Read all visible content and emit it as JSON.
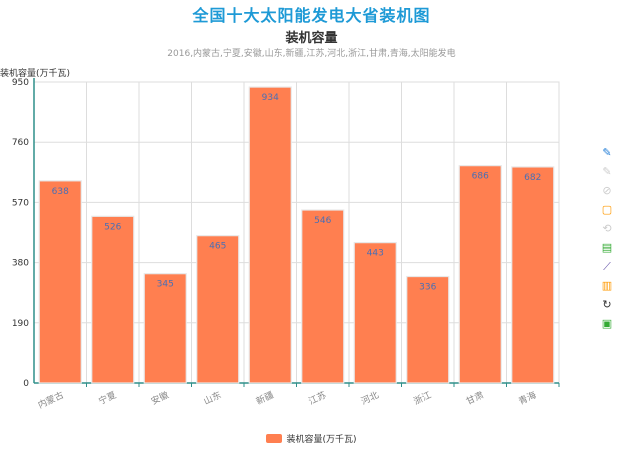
{
  "page": {
    "main_title": "全国十大太阳能发电大省装机图"
  },
  "chart_data": {
    "type": "bar",
    "title": "装机容量",
    "subtitle": "2016,内蒙古,宁夏,安徽,山东,新疆,江苏,河北,浙江,甘肃,青海,太阳能发电",
    "ylabel": "装机容量(万千瓦)",
    "xlabel": "",
    "categories": [
      "内蒙古",
      "宁夏",
      "安徽",
      "山东",
      "新疆",
      "江苏",
      "河北",
      "浙江",
      "甘肃",
      "青海"
    ],
    "series": [
      {
        "name": "装机容量(万千瓦)",
        "values": [
          638,
          526,
          345,
          465,
          934,
          546,
          443,
          336,
          686,
          682
        ]
      }
    ],
    "ylim": [
      0,
      950
    ],
    "yticks": [
      0,
      190,
      380,
      570,
      760,
      950
    ],
    "grid": true,
    "legend_position": "bottom-center",
    "colors": {
      "bar": "#ff7f50",
      "bar_label": "#4a6fb5",
      "axis": "#2f8f8a",
      "grid": "#dddddd"
    }
  },
  "toolbox": [
    {
      "icon": "mark-icon",
      "color": "#1e7bd6"
    },
    {
      "icon": "mark-undo-icon",
      "color": "#cccccc"
    },
    {
      "icon": "mark-clear-icon",
      "color": "#cccccc"
    },
    {
      "icon": "data-zoom-icon",
      "color": "#ff9900"
    },
    {
      "icon": "data-zoom-reset-icon",
      "color": "#cccccc"
    },
    {
      "icon": "data-view-icon",
      "color": "#33aa33"
    },
    {
      "icon": "line-chart-icon",
      "color": "#6655aa"
    },
    {
      "icon": "bar-chart-icon",
      "color": "#ff9900"
    },
    {
      "icon": "restore-icon",
      "color": "#333333"
    },
    {
      "icon": "save-image-icon",
      "color": "#33aa33"
    }
  ]
}
